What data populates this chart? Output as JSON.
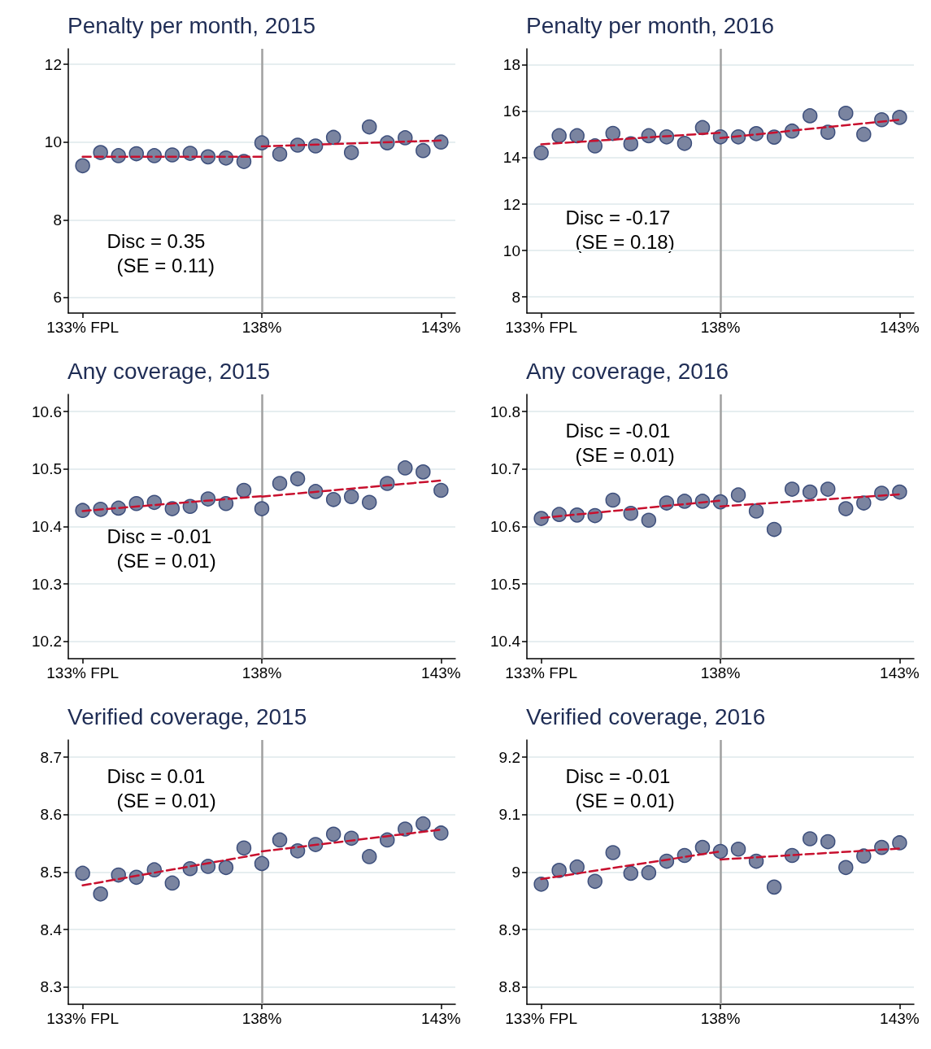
{
  "chart_data": [
    {
      "type": "scatter",
      "title": "Penalty per month, 2015",
      "x": [
        133,
        133.5,
        134,
        134.5,
        135,
        135.5,
        136,
        136.5,
        137,
        137.5,
        138,
        138.5,
        139,
        139.5,
        140,
        140.5,
        141,
        141.5,
        142,
        142.5,
        143
      ],
      "grid": "y",
      "xlim": [
        132.6,
        143.4
      ],
      "xticks": [
        {
          "value": 133,
          "label": "133% FPL"
        },
        {
          "value": 138,
          "label": "138%"
        },
        {
          "value": 143,
          "label": "143%"
        }
      ],
      "ylim": [
        5.6,
        12.4
      ],
      "yticks": [
        6,
        8,
        10,
        12
      ],
      "ref_lines": [
        {
          "axis": "x",
          "value": 138,
          "color": "#a0a0a0"
        }
      ],
      "annotations": [
        "Disc = 0.35",
        "(SE = 0.11)"
      ],
      "series": [
        {
          "type": "scatter",
          "marker": "circle",
          "color": "#7a84a0",
          "values": [
            9.39,
            9.73,
            9.65,
            9.7,
            9.65,
            9.67,
            9.71,
            9.62,
            9.59,
            9.5,
            9.98,
            9.69,
            9.92,
            9.9,
            10.12,
            9.73,
            10.39,
            9.98,
            10.11,
            9.78,
            10.0
          ]
        },
        {
          "type": "line",
          "marker": "none",
          "color": "#c8102e",
          "line_style": "dashed",
          "x": [
            133,
            138,
            138,
            143
          ],
          "values": [
            9.62,
            9.62,
            9.89,
            10.04
          ]
        }
      ]
    },
    {
      "type": "scatter",
      "title": "Penalty per month, 2016",
      "x": [
        133,
        133.5,
        134,
        134.5,
        135,
        135.5,
        136,
        136.5,
        137,
        137.5,
        138,
        138.5,
        139,
        139.5,
        140,
        140.5,
        141,
        141.5,
        142,
        142.5,
        143
      ],
      "grid": "y",
      "xlim": [
        132.6,
        143.4
      ],
      "xticks": [
        {
          "value": 133,
          "label": "133% FPL"
        },
        {
          "value": 138,
          "label": "138%"
        },
        {
          "value": 143,
          "label": "143%"
        }
      ],
      "ylim": [
        7.3,
        18.7
      ],
      "yticks": [
        8,
        10,
        12,
        14,
        16,
        18
      ],
      "ref_lines": [
        {
          "axis": "x",
          "value": 138,
          "color": "#a0a0a0"
        }
      ],
      "annotations": [
        "Disc = -0.17",
        "(SE = 0.18)"
      ],
      "series": [
        {
          "type": "scatter",
          "marker": "circle",
          "color": "#7a84a0",
          "values": [
            14.21,
            14.95,
            14.95,
            14.51,
            15.05,
            14.6,
            14.95,
            14.9,
            14.62,
            15.3,
            14.9,
            14.9,
            15.04,
            14.89,
            15.15,
            15.81,
            15.1,
            15.92,
            15.01,
            15.64,
            15.74
          ]
        },
        {
          "type": "line",
          "marker": "none",
          "color": "#c8102e",
          "line_style": "dashed",
          "x": [
            133,
            138,
            138,
            143
          ],
          "values": [
            14.58,
            15.08,
            14.85,
            15.64
          ]
        }
      ]
    },
    {
      "type": "scatter",
      "title": "Any coverage, 2015",
      "x": [
        133,
        133.5,
        134,
        134.5,
        135,
        135.5,
        136,
        136.5,
        137,
        137.5,
        138,
        138.5,
        139,
        139.5,
        140,
        140.5,
        141,
        141.5,
        142,
        142.5,
        143
      ],
      "grid": "y",
      "xlim": [
        132.6,
        143.4
      ],
      "xticks": [
        {
          "value": 133,
          "label": "133% FPL"
        },
        {
          "value": 138,
          "label": "138%"
        },
        {
          "value": 143,
          "label": "143%"
        }
      ],
      "ylim": [
        10.17,
        10.63
      ],
      "yticks": [
        10.2,
        10.3,
        10.4,
        10.5,
        10.6
      ],
      "ref_lines": [
        {
          "axis": "x",
          "value": 138,
          "color": "#a0a0a0"
        }
      ],
      "annotations": [
        "Disc = -0.01",
        "(SE = 0.01)"
      ],
      "series": [
        {
          "type": "scatter",
          "marker": "circle",
          "color": "#7a84a0",
          "values": [
            10.428,
            10.43,
            10.432,
            10.44,
            10.442,
            10.431,
            10.435,
            10.448,
            10.44,
            10.463,
            10.431,
            10.475,
            10.483,
            10.461,
            10.447,
            10.452,
            10.442,
            10.475,
            10.502,
            10.495,
            10.463
          ]
        },
        {
          "type": "line",
          "marker": "none",
          "color": "#c8102e",
          "line_style": "dashed",
          "x": [
            133,
            138,
            138,
            143
          ],
          "values": [
            10.427,
            10.453,
            10.452,
            10.48
          ]
        }
      ]
    },
    {
      "type": "scatter",
      "title": "Any coverage, 2016",
      "x": [
        133,
        133.5,
        134,
        134.5,
        135,
        135.5,
        136,
        136.5,
        137,
        137.5,
        138,
        138.5,
        139,
        139.5,
        140,
        140.5,
        141,
        141.5,
        142,
        142.5,
        143
      ],
      "grid": "y",
      "xlim": [
        132.6,
        143.4
      ],
      "xticks": [
        {
          "value": 133,
          "label": "133% FPL"
        },
        {
          "value": 138,
          "label": "138%"
        },
        {
          "value": 143,
          "label": "143%"
        }
      ],
      "ylim": [
        10.37,
        10.83
      ],
      "yticks": [
        10.4,
        10.5,
        10.6,
        10.7,
        10.8
      ],
      "ref_lines": [
        {
          "axis": "x",
          "value": 138,
          "color": "#a0a0a0"
        }
      ],
      "annotations": [
        "Disc = -0.01",
        "(SE = 0.01)"
      ],
      "series": [
        {
          "type": "scatter",
          "marker": "circle",
          "color": "#7a84a0",
          "values": [
            10.614,
            10.621,
            10.62,
            10.619,
            10.646,
            10.623,
            10.611,
            10.641,
            10.644,
            10.644,
            10.643,
            10.655,
            10.627,
            10.595,
            10.665,
            10.66,
            10.665,
            10.631,
            10.641,
            10.658,
            10.66
          ]
        },
        {
          "type": "line",
          "marker": "none",
          "color": "#c8102e",
          "line_style": "dashed",
          "x": [
            133,
            138,
            138,
            143
          ],
          "values": [
            10.615,
            10.645,
            10.635,
            10.656
          ]
        }
      ]
    },
    {
      "type": "scatter",
      "title": "Verified coverage, 2015",
      "x": [
        133,
        133.5,
        134,
        134.5,
        135,
        135.5,
        136,
        136.5,
        137,
        137.5,
        138,
        138.5,
        139,
        139.5,
        140,
        140.5,
        141,
        141.5,
        142,
        142.5,
        143
      ],
      "grid": "y",
      "xlim": [
        132.6,
        143.4
      ],
      "xticks": [
        {
          "value": 133,
          "label": "133% FPL"
        },
        {
          "value": 138,
          "label": "138%"
        },
        {
          "value": 143,
          "label": "143%"
        }
      ],
      "ylim": [
        8.27,
        8.73
      ],
      "yticks": [
        8.3,
        8.4,
        8.5,
        8.6,
        8.7
      ],
      "ref_lines": [
        {
          "axis": "x",
          "value": 138,
          "color": "#a0a0a0"
        }
      ],
      "annotations": [
        "Disc = 0.01",
        "(SE = 0.01)"
      ],
      "series": [
        {
          "type": "scatter",
          "marker": "circle",
          "color": "#7a84a0",
          "values": [
            8.498,
            8.462,
            8.495,
            8.491,
            8.504,
            8.481,
            8.506,
            8.51,
            8.508,
            8.542,
            8.515,
            8.556,
            8.537,
            8.548,
            8.566,
            8.559,
            8.527,
            8.556,
            8.575,
            8.584,
            8.568
          ]
        },
        {
          "type": "line",
          "marker": "none",
          "color": "#c8102e",
          "line_style": "dashed",
          "x": [
            133,
            138,
            138,
            143
          ],
          "values": [
            8.477,
            8.532,
            8.536,
            8.574
          ]
        }
      ]
    },
    {
      "type": "scatter",
      "title": "Verified coverage, 2016",
      "x": [
        133,
        133.5,
        134,
        134.5,
        135,
        135.5,
        136,
        136.5,
        137,
        137.5,
        138,
        138.5,
        139,
        139.5,
        140,
        140.5,
        141,
        141.5,
        142,
        142.5,
        143
      ],
      "grid": "y",
      "xlim": [
        132.6,
        143.4
      ],
      "xticks": [
        {
          "value": 133,
          "label": "133% FPL"
        },
        {
          "value": 138,
          "label": "138%"
        },
        {
          "value": 143,
          "label": "143%"
        }
      ],
      "ylim": [
        8.77,
        9.23
      ],
      "yticks": [
        8.8,
        8.9,
        9,
        9.1,
        9.2
      ],
      "ref_lines": [
        {
          "axis": "x",
          "value": 138,
          "color": "#a0a0a0"
        }
      ],
      "annotations": [
        "Disc = -0.01",
        "(SE = 0.01)"
      ],
      "series": [
        {
          "type": "scatter",
          "marker": "circle",
          "color": "#7a84a0",
          "values": [
            8.979,
            9.003,
            9.009,
            8.984,
            9.034,
            8.998,
            8.999,
            9.019,
            9.029,
            9.043,
            9.036,
            9.04,
            9.019,
            8.974,
            9.029,
            9.058,
            9.053,
            9.008,
            9.028,
            9.043,
            9.051
          ]
        },
        {
          "type": "line",
          "marker": "none",
          "color": "#c8102e",
          "line_style": "dashed",
          "x": [
            133,
            138,
            138,
            143
          ],
          "values": [
            8.988,
            9.036,
            9.022,
            9.041
          ]
        }
      ]
    }
  ]
}
